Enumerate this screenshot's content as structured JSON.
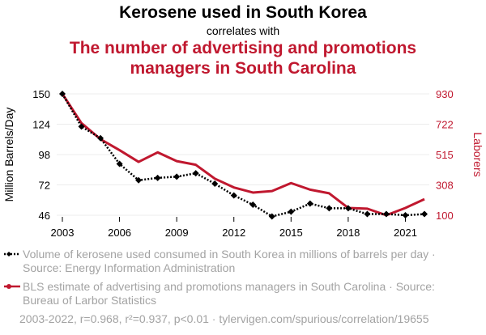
{
  "header": {
    "title": "Kerosene used in South Korea",
    "subtitle": "correlates with",
    "title2": "The number of advertising and promotions managers in South Carolina"
  },
  "colors": {
    "series1": "#000000",
    "series2": "#c0182f",
    "legend_text": "#a3a3a3"
  },
  "chart_data": {
    "type": "line",
    "x": [
      2003,
      2004,
      2005,
      2006,
      2007,
      2008,
      2009,
      2010,
      2011,
      2012,
      2013,
      2014,
      2015,
      2016,
      2017,
      2018,
      2019,
      2020,
      2021,
      2022
    ],
    "xticks": [
      "2003",
      "2006",
      "2009",
      "2012",
      "2015",
      "2018",
      "2021"
    ],
    "ylabel_left": "Million Barrels/Day",
    "ylabel_right": "Laborers",
    "yticks_left": [
      "150",
      "124",
      "98",
      "72",
      "46"
    ],
    "yticks_right": [
      "930",
      "722",
      "515",
      "308",
      "100"
    ],
    "ylim_left": [
      46,
      150
    ],
    "ylim_right": [
      100,
      930
    ],
    "grid": "horizontal",
    "series": [
      {
        "name": "Volume of kerosene used consumed in South Korea in millions of barrels per day · Source: Energy Information Administration",
        "axis": "left",
        "style": "dotted-diamond",
        "values": [
          150,
          122,
          112,
          90,
          76,
          78,
          79,
          82,
          73,
          63,
          55,
          45,
          49,
          56,
          52,
          52,
          47,
          47,
          46,
          47
        ]
      },
      {
        "name": "BLS estimate of advertising and promotions managers in South Carolina · Source: Bureau of Larbor Statistics",
        "axis": "right",
        "style": "solid",
        "values": [
          930,
          730,
          620,
          545,
          465,
          530,
          470,
          445,
          350,
          290,
          255,
          265,
          320,
          275,
          250,
          150,
          145,
          100,
          150,
          210
        ]
      }
    ]
  },
  "legend": {
    "item1": "Volume of kerosene used consumed in South Korea in millions of barrels per day · Source: Energy Information Administration",
    "item2": "BLS estimate of advertising and promotions managers in South Carolina · Source: Bureau of Larbor Statistics"
  },
  "footer": "2003-2022, r=0.968, r²=0.937, p<0.01 · tylervigen.com/spurious/correlation/19655"
}
